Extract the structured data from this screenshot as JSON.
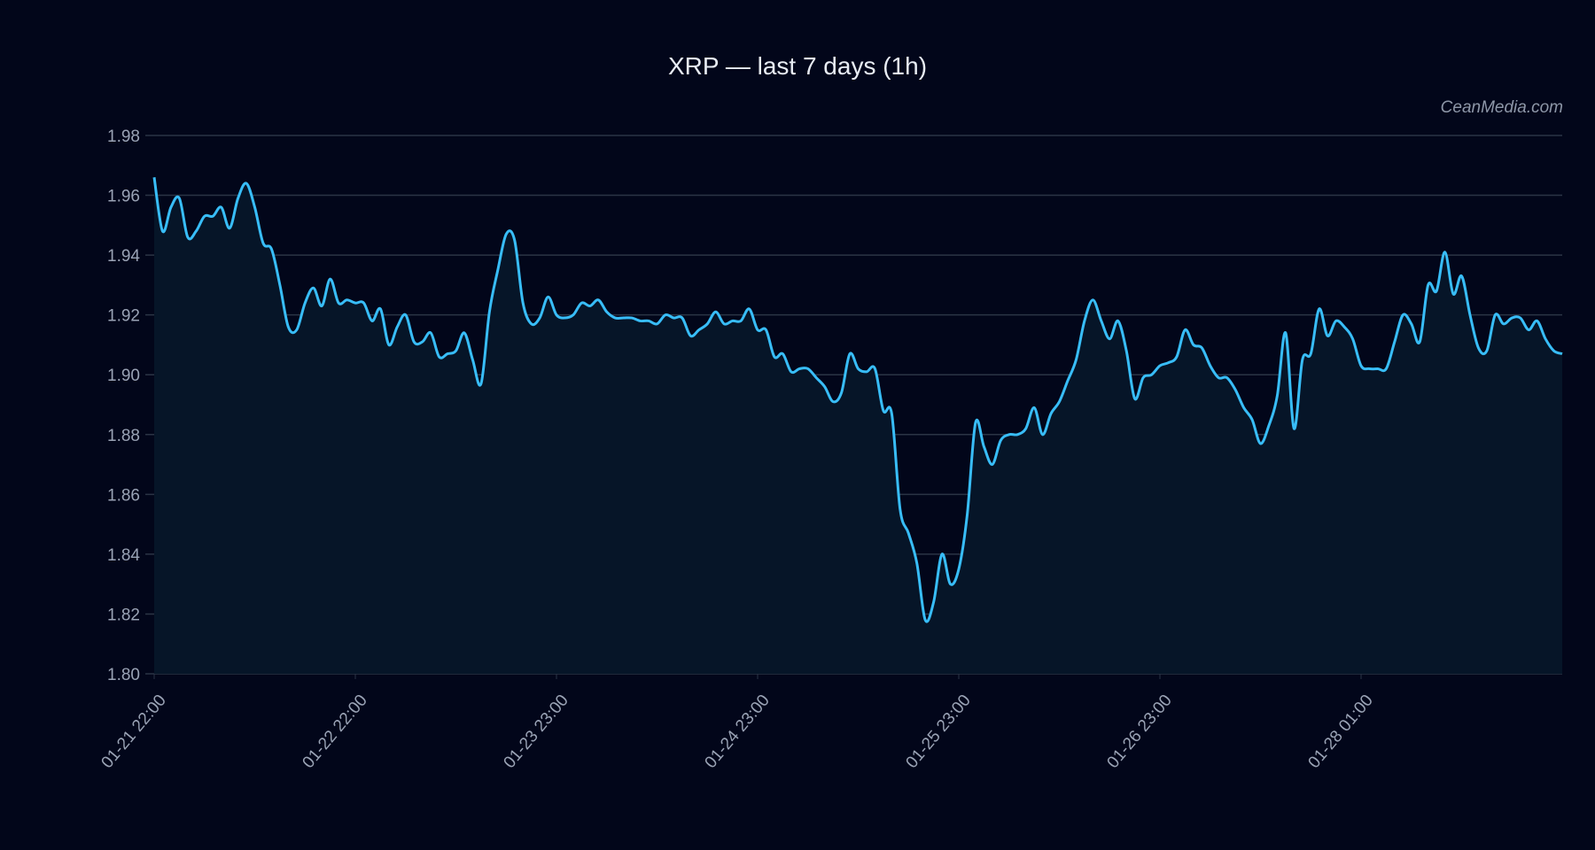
{
  "chart_data": {
    "type": "area",
    "title": "XRP — last 7 days (1h)",
    "watermark": "CeanMedia.com",
    "xlabel": "",
    "ylabel": "",
    "ylim": [
      1.8,
      1.98
    ],
    "yticks": [
      "1.80",
      "1.82",
      "1.84",
      "1.86",
      "1.88",
      "1.90",
      "1.92",
      "1.94",
      "1.96",
      "1.98"
    ],
    "xticks": [
      "01-21 22:00",
      "01-22 22:00",
      "01-23 23:00",
      "01-24 23:00",
      "01-25 23:00",
      "01-26 23:00",
      "01-28 01:00"
    ],
    "xtick_step_hours": 24,
    "grid": true,
    "colors": {
      "line": "#38bdf8",
      "fill": "#061528",
      "background": "#02061a",
      "grid": "#2b3445"
    },
    "values": [
      1.966,
      1.948,
      1.956,
      1.959,
      1.946,
      1.948,
      1.953,
      1.953,
      1.956,
      1.949,
      1.959,
      1.964,
      1.956,
      1.944,
      1.942,
      1.93,
      1.916,
      1.915,
      1.924,
      1.929,
      1.923,
      1.932,
      1.924,
      1.925,
      1.924,
      1.924,
      1.918,
      1.922,
      1.91,
      1.916,
      1.92,
      1.911,
      1.911,
      1.914,
      1.906,
      1.907,
      1.908,
      1.914,
      1.905,
      1.897,
      1.921,
      1.935,
      1.947,
      1.945,
      1.924,
      1.917,
      1.919,
      1.926,
      1.92,
      1.919,
      1.92,
      1.924,
      1.923,
      1.925,
      1.921,
      1.919,
      1.919,
      1.919,
      1.918,
      1.918,
      1.917,
      1.92,
      1.919,
      1.919,
      1.913,
      1.915,
      1.917,
      1.921,
      1.917,
      1.918,
      1.918,
      1.922,
      1.915,
      1.915,
      1.906,
      1.907,
      1.901,
      1.902,
      1.902,
      1.899,
      1.896,
      1.891,
      1.894,
      1.907,
      1.902,
      1.901,
      1.902,
      1.888,
      1.887,
      1.855,
      1.847,
      1.837,
      1.818,
      1.824,
      1.84,
      1.83,
      1.835,
      1.853,
      1.884,
      1.876,
      1.87,
      1.878,
      1.88,
      1.88,
      1.882,
      1.889,
      1.88,
      1.887,
      1.891,
      1.898,
      1.905,
      1.918,
      1.925,
      1.918,
      1.912,
      1.918,
      1.908,
      1.892,
      1.899,
      1.9,
      1.903,
      1.904,
      1.906,
      1.915,
      1.91,
      1.909,
      1.903,
      1.899,
      1.899,
      1.895,
      1.889,
      1.885,
      1.877,
      1.883,
      1.893,
      1.914,
      1.882,
      1.905,
      1.907,
      1.922,
      1.913,
      1.918,
      1.916,
      1.912,
      1.903,
      1.902,
      1.902,
      1.902,
      1.911,
      1.92,
      1.917,
      1.911,
      1.93,
      1.928,
      1.941,
      1.927,
      1.933,
      1.92,
      1.909,
      1.908,
      1.92,
      1.917,
      1.919,
      1.919,
      1.915,
      1.918,
      1.912,
      1.908,
      1.907
    ]
  }
}
